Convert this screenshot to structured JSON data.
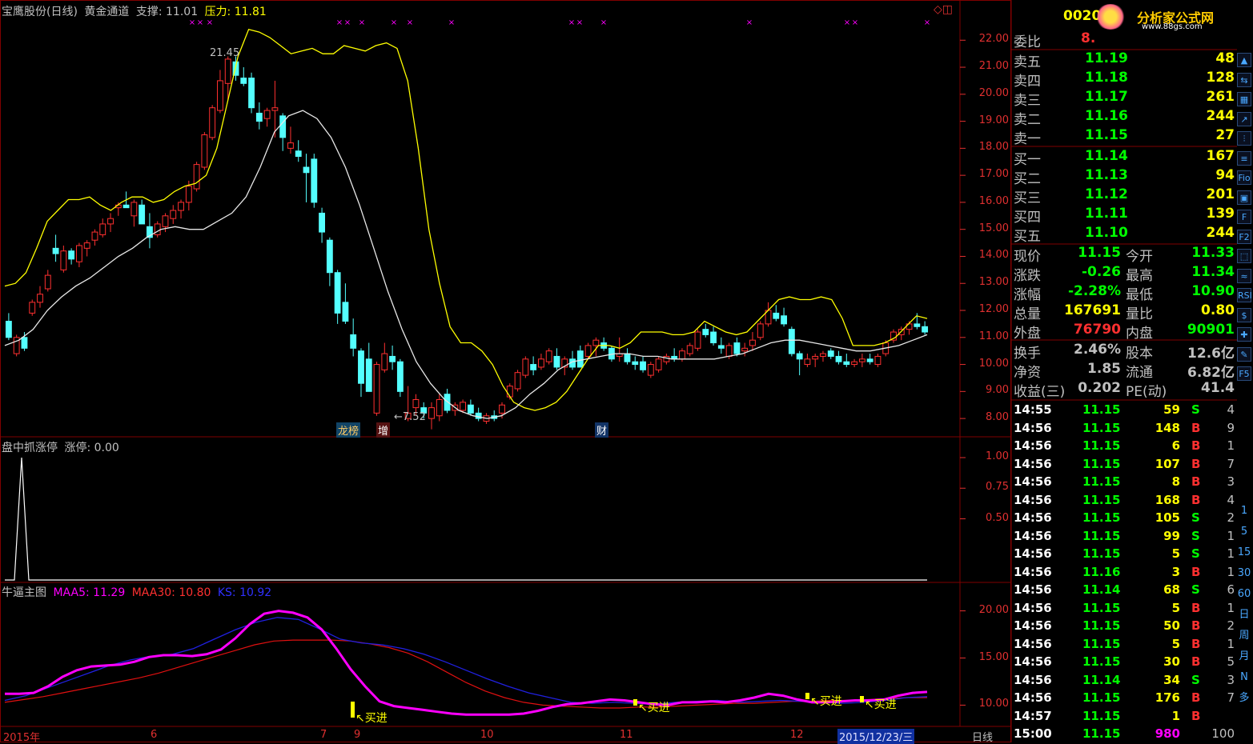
{
  "header": {
    "stock_name": "宝鹰股份(日线)",
    "indicator": "黄金通道",
    "support_label": "支撑:",
    "support_value": "11.01",
    "pressure_label": "压力:",
    "pressure_value": "11.81"
  },
  "panel2": {
    "title": "盘中抓涨停",
    "label": "涨停:",
    "value": "0.00"
  },
  "panel3": {
    "title": "牛逼主图",
    "maa5_label": "MAA5:",
    "maa5_value": "11.29",
    "maa30_label": "MAA30:",
    "maa30_value": "10.80",
    "ks_label": "KS:",
    "ks_value": "10.92"
  },
  "price_axis": [
    "22.00",
    "21.00",
    "20.00",
    "19.00",
    "18.00",
    "17.00",
    "16.00",
    "15.00",
    "14.00",
    "13.00",
    "12.00",
    "11.00",
    "10.00",
    "9.00",
    "8.00"
  ],
  "panel2_axis": [
    "1.00",
    "0.75",
    "0.50"
  ],
  "panel3_axis": [
    "20.00",
    "15.00",
    "10.00"
  ],
  "annotations": {
    "high": "21.45",
    "low": "←7.52",
    "buy": "买进"
  },
  "event_tags": [
    {
      "text": "龙榜",
      "color": "#22aacc"
    },
    {
      "text": "增",
      "color": "#cc2222"
    },
    {
      "text": "财",
      "color": "#2266cc"
    }
  ],
  "date_axis": {
    "year": "2015年",
    "months": [
      "6",
      "7",
      "9",
      "10",
      "11",
      "12"
    ],
    "current_date": "2015/12/23/三",
    "period": "日线"
  },
  "quote": {
    "code": "0020",
    "logo_text": "分析家公式网",
    "logo_url_text": "www.88gs.com",
    "weibi_label": "委比",
    "weibi_value": "8.",
    "sell": [
      {
        "label": "卖五",
        "price": "11.19",
        "vol": "48"
      },
      {
        "label": "卖四",
        "price": "11.18",
        "vol": "128"
      },
      {
        "label": "卖三",
        "price": "11.17",
        "vol": "261"
      },
      {
        "label": "卖二",
        "price": "11.16",
        "vol": "244"
      },
      {
        "label": "卖一",
        "price": "11.15",
        "vol": "27"
      }
    ],
    "buy": [
      {
        "label": "买一",
        "price": "11.14",
        "vol": "167"
      },
      {
        "label": "买二",
        "price": "11.13",
        "vol": "94"
      },
      {
        "label": "买三",
        "price": "11.12",
        "vol": "201"
      },
      {
        "label": "买四",
        "price": "11.11",
        "vol": "139"
      },
      {
        "label": "买五",
        "price": "11.10",
        "vol": "244"
      }
    ],
    "stats": [
      {
        "l1": "现价",
        "v1": "11.15",
        "c1": "#00ff00",
        "l2": "今开",
        "v2": "11.33",
        "c2": "#00ff00"
      },
      {
        "l1": "涨跌",
        "v1": "-0.26",
        "c1": "#00ff00",
        "l2": "最高",
        "v2": "11.34",
        "c2": "#00ff00"
      },
      {
        "l1": "涨幅",
        "v1": "-2.28%",
        "c1": "#00ff00",
        "l2": "最低",
        "v2": "10.90",
        "c2": "#00ff00"
      },
      {
        "l1": "总量",
        "v1": "167691",
        "c1": "#ffff00",
        "l2": "量比",
        "v2": "0.80",
        "c2": "#ffff00"
      },
      {
        "l1": "外盘",
        "v1": "76790",
        "c1": "#ff3030",
        "l2": "内盘",
        "v2": "90901",
        "c2": "#00ff00"
      }
    ],
    "fundamentals": [
      {
        "l1": "换手",
        "v1": "2.46%",
        "l2": "股本",
        "v2": "12.6亿"
      },
      {
        "l1": "净资",
        "v1": "1.85",
        "l2": "流通",
        "v2": "6.82亿"
      },
      {
        "l1": "收益(三)",
        "v1": "0.202",
        "l2": "PE(动)",
        "v2": "41.4"
      }
    ]
  },
  "ticks": [
    {
      "t": "14:55",
      "p": "11.15",
      "v": "59",
      "bs": "S",
      "n": "4"
    },
    {
      "t": "14:56",
      "p": "11.15",
      "v": "148",
      "bs": "B",
      "n": "9"
    },
    {
      "t": "14:56",
      "p": "11.15",
      "v": "6",
      "bs": "B",
      "n": "1"
    },
    {
      "t": "14:56",
      "p": "11.15",
      "v": "107",
      "bs": "B",
      "n": "7"
    },
    {
      "t": "14:56",
      "p": "11.15",
      "v": "8",
      "bs": "B",
      "n": "3"
    },
    {
      "t": "14:56",
      "p": "11.15",
      "v": "168",
      "bs": "B",
      "n": "4"
    },
    {
      "t": "14:56",
      "p": "11.15",
      "v": "105",
      "bs": "S",
      "n": "2"
    },
    {
      "t": "14:56",
      "p": "11.15",
      "v": "99",
      "bs": "S",
      "n": "1"
    },
    {
      "t": "14:56",
      "p": "11.15",
      "v": "5",
      "bs": "S",
      "n": "1"
    },
    {
      "t": "14:56",
      "p": "11.16",
      "v": "3",
      "bs": "B",
      "n": "1"
    },
    {
      "t": "14:56",
      "p": "11.14",
      "v": "68",
      "bs": "S",
      "n": "6"
    },
    {
      "t": "14:56",
      "p": "11.15",
      "v": "5",
      "bs": "B",
      "n": "1"
    },
    {
      "t": "14:56",
      "p": "11.15",
      "v": "50",
      "bs": "B",
      "n": "2"
    },
    {
      "t": "14:56",
      "p": "11.15",
      "v": "5",
      "bs": "B",
      "n": "1"
    },
    {
      "t": "14:56",
      "p": "11.15",
      "v": "30",
      "bs": "B",
      "n": "5"
    },
    {
      "t": "14:56",
      "p": "11.14",
      "v": "34",
      "bs": "S",
      "n": "3"
    },
    {
      "t": "14:56",
      "p": "11.15",
      "v": "176",
      "bs": "B",
      "n": "7"
    },
    {
      "t": "14:57",
      "p": "11.15",
      "v": "1",
      "bs": "B",
      "n": ""
    },
    {
      "t": "15:00",
      "p": "11.15",
      "v": "980",
      "bs": "",
      "n": "100"
    }
  ],
  "toolbar": [
    "1",
    "5",
    "15",
    "30",
    "60",
    "日",
    "周",
    "月",
    "N",
    "多"
  ],
  "colors": {
    "up": "#ff3030",
    "down": "#54ffff",
    "grid": "#800000",
    "yellow": "#ffff00",
    "magenta": "#ff00ff"
  },
  "chart_data": {
    "type": "candlestick",
    "price_range": [
      7.5,
      22.6
    ],
    "candles": [
      [
        11.6,
        11.9,
        10.9,
        11.0
      ],
      [
        10.4,
        11.1,
        10.3,
        11.0
      ],
      [
        11.0,
        11.2,
        10.5,
        10.6
      ],
      [
        11.9,
        12.4,
        11.8,
        12.3
      ],
      [
        12.3,
        12.9,
        12.1,
        12.6
      ],
      [
        12.8,
        13.5,
        12.7,
        13.3
      ],
      [
        14.3,
        14.8,
        13.8,
        14.1
      ],
      [
        13.5,
        14.4,
        13.4,
        14.2
      ],
      [
        14.2,
        14.3,
        13.7,
        13.9
      ],
      [
        13.8,
        14.5,
        13.6,
        14.4
      ],
      [
        14.3,
        14.6,
        14.0,
        14.5
      ],
      [
        14.6,
        15.0,
        14.4,
        14.9
      ],
      [
        14.8,
        15.4,
        14.7,
        15.2
      ],
      [
        15.2,
        15.6,
        14.9,
        15.4
      ],
      [
        15.8,
        16.0,
        15.5,
        15.9
      ],
      [
        15.9,
        16.4,
        15.8,
        15.8
      ],
      [
        15.5,
        16.1,
        15.1,
        16.0
      ],
      [
        15.9,
        16.1,
        15.3,
        15.2
      ],
      [
        15.1,
        15.6,
        14.3,
        14.7
      ],
      [
        14.8,
        15.3,
        14.7,
        15.2
      ],
      [
        15.1,
        15.6,
        14.9,
        15.5
      ],
      [
        15.4,
        15.9,
        15.2,
        15.7
      ],
      [
        15.7,
        16.1,
        15.4,
        16.0
      ],
      [
        16.0,
        16.8,
        15.7,
        16.6
      ],
      [
        16.5,
        17.5,
        16.4,
        17.4
      ],
      [
        17.3,
        18.6,
        17.2,
        18.5
      ],
      [
        18.4,
        19.6,
        18.3,
        19.5
      ],
      [
        19.4,
        20.9,
        19.3,
        20.5
      ],
      [
        20.4,
        21.4,
        19.8,
        21.3
      ],
      [
        21.2,
        21.4,
        20.5,
        20.7
      ],
      [
        20.6,
        21.0,
        20.3,
        20.4
      ],
      [
        20.6,
        20.8,
        19.3,
        19.5
      ],
      [
        19.3,
        19.7,
        18.7,
        19.0
      ],
      [
        19.1,
        19.5,
        18.8,
        19.4
      ],
      [
        19.4,
        20.5,
        18.4,
        19.5
      ],
      [
        19.2,
        19.3,
        17.9,
        18.4
      ],
      [
        18.0,
        18.8,
        17.8,
        18.2
      ],
      [
        17.9,
        18.3,
        17.5,
        17.7
      ],
      [
        17.3,
        17.8,
        16.0,
        17.1
      ],
      [
        17.6,
        17.8,
        15.8,
        16.0
      ],
      [
        15.6,
        15.8,
        14.5,
        14.9
      ],
      [
        14.6,
        14.7,
        12.9,
        13.4
      ],
      [
        13.4,
        13.5,
        11.5,
        11.9
      ],
      [
        12.3,
        13.0,
        11.5,
        11.6
      ],
      [
        11.1,
        11.7,
        10.3,
        10.6
      ],
      [
        10.5,
        10.6,
        8.8,
        9.3
      ],
      [
        10.2,
        10.8,
        9.0,
        9.0
      ],
      [
        8.2,
        10.1,
        8.1,
        10.0
      ],
      [
        9.8,
        10.8,
        9.7,
        10.4
      ],
      [
        10.3,
        10.7,
        9.8,
        10.1
      ],
      [
        10.1,
        10.2,
        8.8,
        9.0
      ],
      [
        8.0,
        9.2,
        7.9,
        8.2
      ],
      [
        8.4,
        8.9,
        8.1,
        8.7
      ],
      [
        8.4,
        8.6,
        8.0,
        8.2
      ],
      [
        8.0,
        8.6,
        7.6,
        8.4
      ],
      [
        8.1,
        8.9,
        7.9,
        8.7
      ],
      [
        8.9,
        9.1,
        8.2,
        8.3
      ],
      [
        8.3,
        8.6,
        8.1,
        8.5
      ],
      [
        8.3,
        8.7,
        8.2,
        8.6
      ],
      [
        8.5,
        8.7,
        8.1,
        8.2
      ],
      [
        8.2,
        8.4,
        7.9,
        8.0
      ],
      [
        7.9,
        8.2,
        7.8,
        8.1
      ],
      [
        8.1,
        8.3,
        7.9,
        8.0
      ],
      [
        8.2,
        8.6,
        8.0,
        8.5
      ],
      [
        8.8,
        9.3,
        8.7,
        9.2
      ],
      [
        9.1,
        9.8,
        9.0,
        9.7
      ],
      [
        9.6,
        10.3,
        9.5,
        10.2
      ],
      [
        10.0,
        10.3,
        9.6,
        9.8
      ],
      [
        9.9,
        10.4,
        9.8,
        10.2
      ],
      [
        10.1,
        10.6,
        10.0,
        10.5
      ],
      [
        10.3,
        10.6,
        9.8,
        9.9
      ],
      [
        9.9,
        10.3,
        9.6,
        10.2
      ],
      [
        10.2,
        10.5,
        9.8,
        9.9
      ],
      [
        10.5,
        10.7,
        9.9,
        9.9
      ],
      [
        10.3,
        10.8,
        10.2,
        10.7
      ],
      [
        10.7,
        11.0,
        10.3,
        10.9
      ],
      [
        10.8,
        11.0,
        10.5,
        10.6
      ],
      [
        10.6,
        10.7,
        10.1,
        10.2
      ],
      [
        10.3,
        11.0,
        10.1,
        10.4
      ],
      [
        10.4,
        10.6,
        10.0,
        10.1
      ],
      [
        10.1,
        10.3,
        9.8,
        10.0
      ],
      [
        10.1,
        10.3,
        9.7,
        9.8
      ],
      [
        9.6,
        10.1,
        9.5,
        10.0
      ],
      [
        9.8,
        10.3,
        9.7,
        10.2
      ],
      [
        10.1,
        10.4,
        10.0,
        10.3
      ],
      [
        10.3,
        10.6,
        10.1,
        10.2
      ],
      [
        10.2,
        10.6,
        10.1,
        10.5
      ],
      [
        10.4,
        10.8,
        10.3,
        10.7
      ],
      [
        10.6,
        11.3,
        10.5,
        11.2
      ],
      [
        11.3,
        11.5,
        11.0,
        11.1
      ],
      [
        11.2,
        11.4,
        10.7,
        10.8
      ],
      [
        10.7,
        11.0,
        10.4,
        10.6
      ],
      [
        10.3,
        10.8,
        10.2,
        10.7
      ],
      [
        10.8,
        11.0,
        10.3,
        10.4
      ],
      [
        10.5,
        10.8,
        10.3,
        10.6
      ],
      [
        10.7,
        11.2,
        10.5,
        10.9
      ],
      [
        11.0,
        11.6,
        10.9,
        11.5
      ],
      [
        11.5,
        12.3,
        11.4,
        12.0
      ],
      [
        11.9,
        12.2,
        11.6,
        11.7
      ],
      [
        11.8,
        12.1,
        11.4,
        11.5
      ],
      [
        11.3,
        11.4,
        10.3,
        10.4
      ],
      [
        10.4,
        10.5,
        9.6,
        10.2
      ],
      [
        10.0,
        10.4,
        9.9,
        10.2
      ],
      [
        10.2,
        10.4,
        9.9,
        10.3
      ],
      [
        10.3,
        10.5,
        10.1,
        10.4
      ],
      [
        10.5,
        10.6,
        10.2,
        10.3
      ],
      [
        10.3,
        10.5,
        10.0,
        10.1
      ],
      [
        10.1,
        10.4,
        9.9,
        10.0
      ],
      [
        10.0,
        10.2,
        9.9,
        10.1
      ],
      [
        10.1,
        10.4,
        9.9,
        10.2
      ],
      [
        10.2,
        10.4,
        10.0,
        10.1
      ],
      [
        10.0,
        10.4,
        9.9,
        10.3
      ],
      [
        10.4,
        10.9,
        10.3,
        10.8
      ],
      [
        10.9,
        11.3,
        10.8,
        11.2
      ],
      [
        11.1,
        11.4,
        10.9,
        11.3
      ],
      [
        11.3,
        11.6,
        11.1,
        11.5
      ],
      [
        11.5,
        11.9,
        11.3,
        11.4
      ],
      [
        11.4,
        11.6,
        11.1,
        11.2
      ]
    ],
    "upper_band": [
      12.9,
      13.0,
      13.4,
      14.3,
      15.3,
      15.7,
      16.1,
      16.1,
      16.2,
      15.9,
      15.7,
      16.0,
      16.2,
      16.2,
      16.0,
      16.1,
      16.4,
      16.6,
      16.7,
      17.0,
      18.0,
      19.7,
      21.4,
      22.4,
      22.3,
      22.1,
      21.8,
      21.5,
      21.6,
      21.7,
      21.5,
      21.5,
      21.8,
      21.7,
      21.6,
      21.8,
      21.9,
      21.7,
      20.5,
      18.0,
      15.0,
      13.0,
      11.4,
      10.8,
      10.8,
      10.5,
      10.0,
      9.2,
      8.6,
      8.4,
      8.3,
      8.4,
      8.6,
      9.0,
      9.6,
      10.2,
      10.7,
      10.7,
      10.6,
      10.8,
      11.2,
      11.2,
      11.2,
      11.1,
      11.1,
      11.2,
      11.6,
      11.4,
      11.2,
      11.1,
      11.2,
      11.6,
      12.0,
      12.4,
      12.5,
      12.4,
      12.4,
      12.5,
      12.4,
      11.7,
      10.7,
      10.7,
      10.7,
      10.8,
      11.0,
      11.4,
      11.8,
      11.7
    ],
    "lower_band": [
      10.7,
      10.9,
      11.3,
      12.0,
      12.5,
      12.9,
      13.2,
      13.6,
      14.0,
      14.3,
      14.7,
      15.0,
      15.1,
      15.0,
      15.0,
      15.3,
      15.6,
      16.2,
      17.3,
      18.6,
      19.2,
      19.4,
      19.1,
      18.4,
      17.3,
      15.9,
      14.3,
      12.7,
      11.3,
      10.1,
      9.3,
      8.7,
      8.3,
      8.1,
      8.0,
      8.1,
      8.4,
      8.9,
      9.3,
      9.8,
      10.1,
      10.2,
      10.3,
      10.4,
      10.4,
      10.3,
      10.3,
      10.2,
      10.2,
      10.2,
      10.2,
      10.3,
      10.4,
      10.6,
      10.8,
      10.9,
      10.9,
      10.8,
      10.7,
      10.6,
      10.5,
      10.5,
      10.6,
      10.7,
      10.9,
      11.1
    ],
    "limit_up_signal": [
      1,
      0
    ],
    "maa5": [
      11.2,
      11.2,
      11.3,
      12.0,
      13.0,
      13.7,
      14.1,
      14.2,
      14.3,
      14.6,
      15.1,
      15.3,
      15.3,
      15.2,
      15.4,
      15.9,
      17.1,
      18.6,
      19.7,
      20.0,
      19.8,
      19.3,
      18.0,
      16.0,
      13.8,
      12.0,
      10.4,
      9.9,
      9.7,
      9.5,
      9.3,
      9.1,
      9.0,
      9.0,
      9.0,
      9.0,
      9.1,
      9.4,
      9.8,
      10.1,
      10.2,
      10.4,
      10.6,
      10.5,
      10.3,
      10.1,
      10.0,
      10.3,
      10.3,
      10.4,
      10.3,
      10.5,
      10.8,
      11.2,
      11.0,
      10.6,
      10.3,
      10.3,
      10.4,
      10.5,
      10.5,
      10.6,
      11.0,
      11.3,
      11.4
    ],
    "maa30": [
      10.3,
      10.6,
      10.9,
      11.3,
      11.7,
      12.1,
      12.5,
      12.9,
      13.4,
      14.0,
      14.6,
      15.2,
      15.8,
      16.4,
      16.8,
      16.9,
      16.9,
      16.9,
      16.8,
      16.5,
      16.1,
      15.5,
      14.6,
      13.5,
      12.4,
      11.5,
      10.8,
      10.3,
      10.0,
      9.9,
      9.8,
      9.7,
      9.7,
      9.8,
      9.8,
      9.9,
      10.0,
      10.1,
      10.2,
      10.2,
      10.3,
      10.4,
      10.4,
      10.5,
      10.5,
      10.6,
      10.7,
      10.8,
      10.8
    ],
    "ks": [
      10.5,
      11.0,
      11.8,
      12.6,
      13.4,
      14.2,
      14.8,
      15.2,
      15.4,
      16.0,
      17.0,
      18.0,
      18.8,
      19.3,
      19.1,
      18.1,
      17.0,
      16.6,
      16.4,
      16.0,
      15.4,
      14.6,
      13.7,
      12.8,
      12.0,
      11.3,
      10.8,
      10.3,
      10.2,
      10.3,
      10.2,
      10.1,
      10.3,
      10.4,
      10.5,
      10.3,
      10.4,
      10.5,
      10.4,
      10.3,
      10.2,
      10.3,
      10.5,
      10.8,
      10.9
    ],
    "ind_range": [
      8.0,
      22.0
    ]
  }
}
